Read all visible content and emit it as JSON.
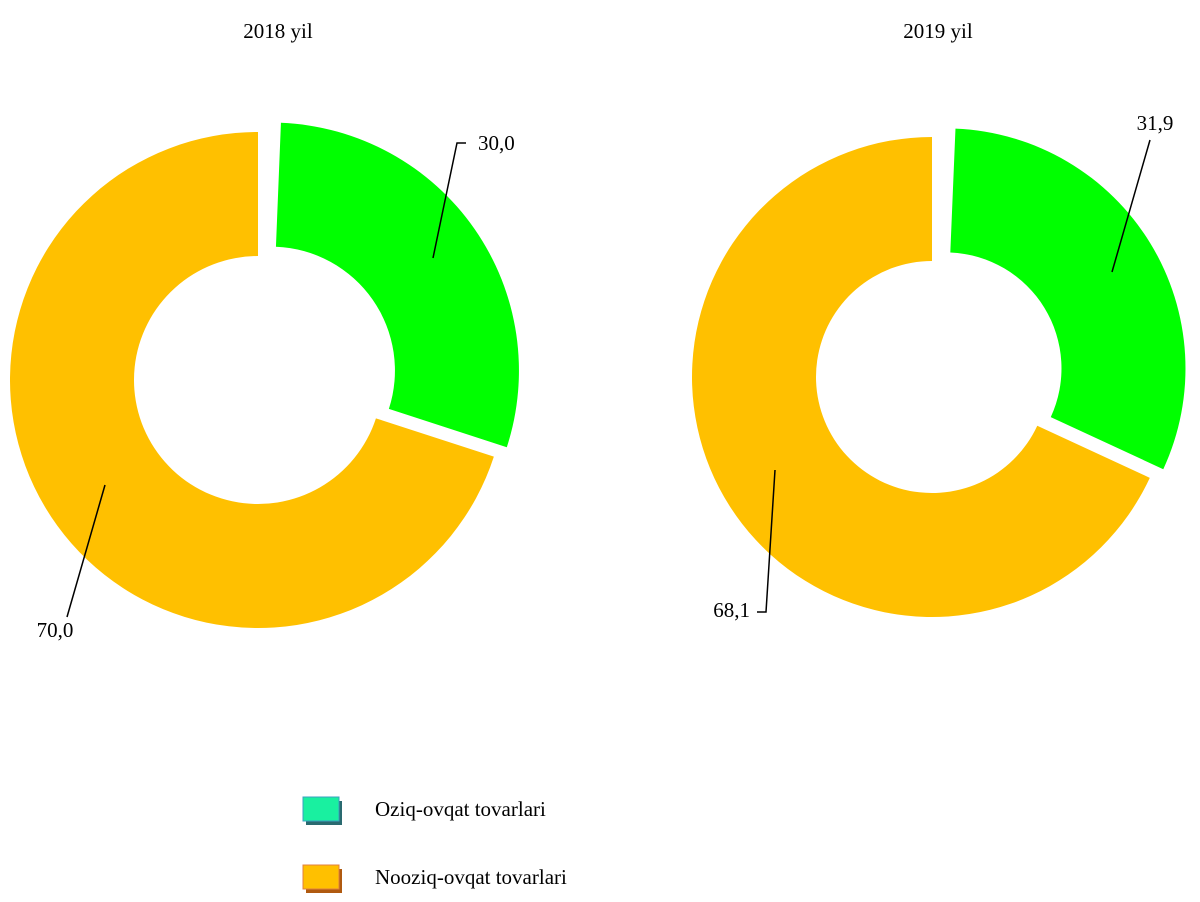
{
  "chart_data": [
    {
      "type": "pie",
      "title": "2018 yil",
      "values": [
        30.0,
        70.0
      ],
      "value_labels": [
        "30,0",
        "70,0"
      ],
      "colors": [
        "#00ff00",
        "#ffc000"
      ],
      "donut": true
    },
    {
      "type": "pie",
      "title": "2019 yil",
      "values": [
        31.9,
        68.1
      ],
      "value_labels": [
        "31,9",
        "68,1"
      ],
      "colors": [
        "#00ff00",
        "#ffc000"
      ],
      "donut": true
    }
  ],
  "legend": {
    "labels": [
      "Oziq-ovqat tovarlari",
      "Nooziq-ovqat tovarlari"
    ],
    "colors": [
      "#19f0a0",
      "#ffc000"
    ]
  }
}
